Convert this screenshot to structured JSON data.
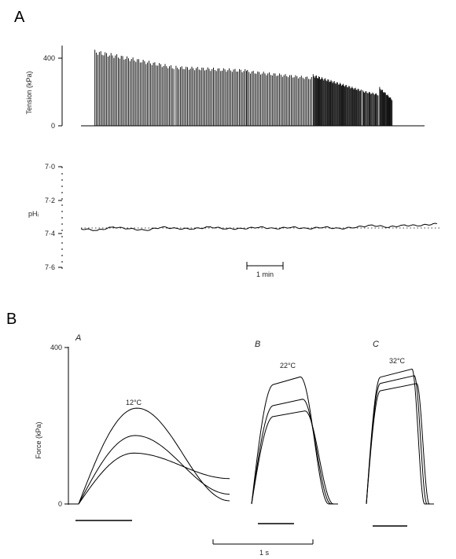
{
  "panel_A": {
    "letter": "A"
  },
  "panel_B": {
    "letter": "B"
  },
  "chart_data": [
    {
      "type": "bar",
      "description_id": "tension",
      "ylabel": "Tension (kPa)",
      "yticks": [
        "400",
        "0"
      ],
      "ylim": [
        0,
        460
      ],
      "x_unit": "min",
      "time_range": [
        0,
        11.1
      ],
      "series": [
        {
          "segments": [
            {
              "start": 0.45,
              "end": 3.0,
              "n": 55,
              "peak_start": 450,
              "peak_end": 355
            },
            {
              "start": 3.07,
              "end": 5.35,
              "n": 50,
              "peak_start": 355,
              "peak_end": 335
            },
            {
              "start": 5.38,
              "end": 7.45,
              "n": 45,
              "peak_start": 330,
              "peak_end": 290
            },
            {
              "start": 7.5,
              "end": 9.05,
              "n": 60,
              "peak_start": 305,
              "peak_end": 215
            },
            {
              "start": 9.1,
              "end": 9.6,
              "n": 18,
              "peak_start": 210,
              "peak_end": 190
            },
            {
              "start": 9.65,
              "end": 10.05,
              "n": 18,
              "peak_start": 230,
              "peak_end": 160
            }
          ]
        }
      ]
    },
    {
      "type": "line",
      "description_id": "phi",
      "ylabel": "pHᵢ",
      "yticks": [
        "7·0",
        "7·2",
        "7·4",
        "7·6"
      ],
      "ylim": [
        7.0,
        7.6
      ],
      "y_inverted": true,
      "baseline": 7.4,
      "scale_bar_label": "1 min",
      "series": [
        {
          "x_min": [
            0,
            0.5,
            1.0,
            1.5,
            2.0,
            2.5,
            3.0,
            3.5,
            4.0,
            4.5,
            5.0,
            5.5,
            6.0,
            6.5,
            7.0,
            7.5,
            8.0,
            8.5,
            9.0,
            9.5,
            10.0,
            10.5,
            11.0
          ],
          "y": [
            7.37,
            7.38,
            7.36,
            7.37,
            7.38,
            7.36,
            7.37,
            7.37,
            7.36,
            7.37,
            7.37,
            7.36,
            7.37,
            7.36,
            7.37,
            7.36,
            7.37,
            7.36,
            7.35,
            7.36,
            7.35,
            7.35,
            7.34
          ]
        }
      ]
    },
    {
      "type": "line",
      "description_id": "force",
      "ylabel": "Force (kPa)",
      "yticks": [
        "400",
        "0"
      ],
      "ylim": [
        0,
        400
      ],
      "scale_bar_label": "1 s",
      "subpanels": [
        {
          "letter": "A",
          "temperature": "12°C",
          "peaks": [
            245,
            175,
            130
          ],
          "stim_s": 0.7
        },
        {
          "letter": "B",
          "temperature": "22°C",
          "peaks": [
            325,
            268,
            238
          ],
          "stim_s": 0.4
        },
        {
          "letter": "C",
          "temperature": "32°C",
          "peaks": [
            345,
            328,
            308
          ],
          "stim_s": 0.4
        }
      ]
    }
  ]
}
